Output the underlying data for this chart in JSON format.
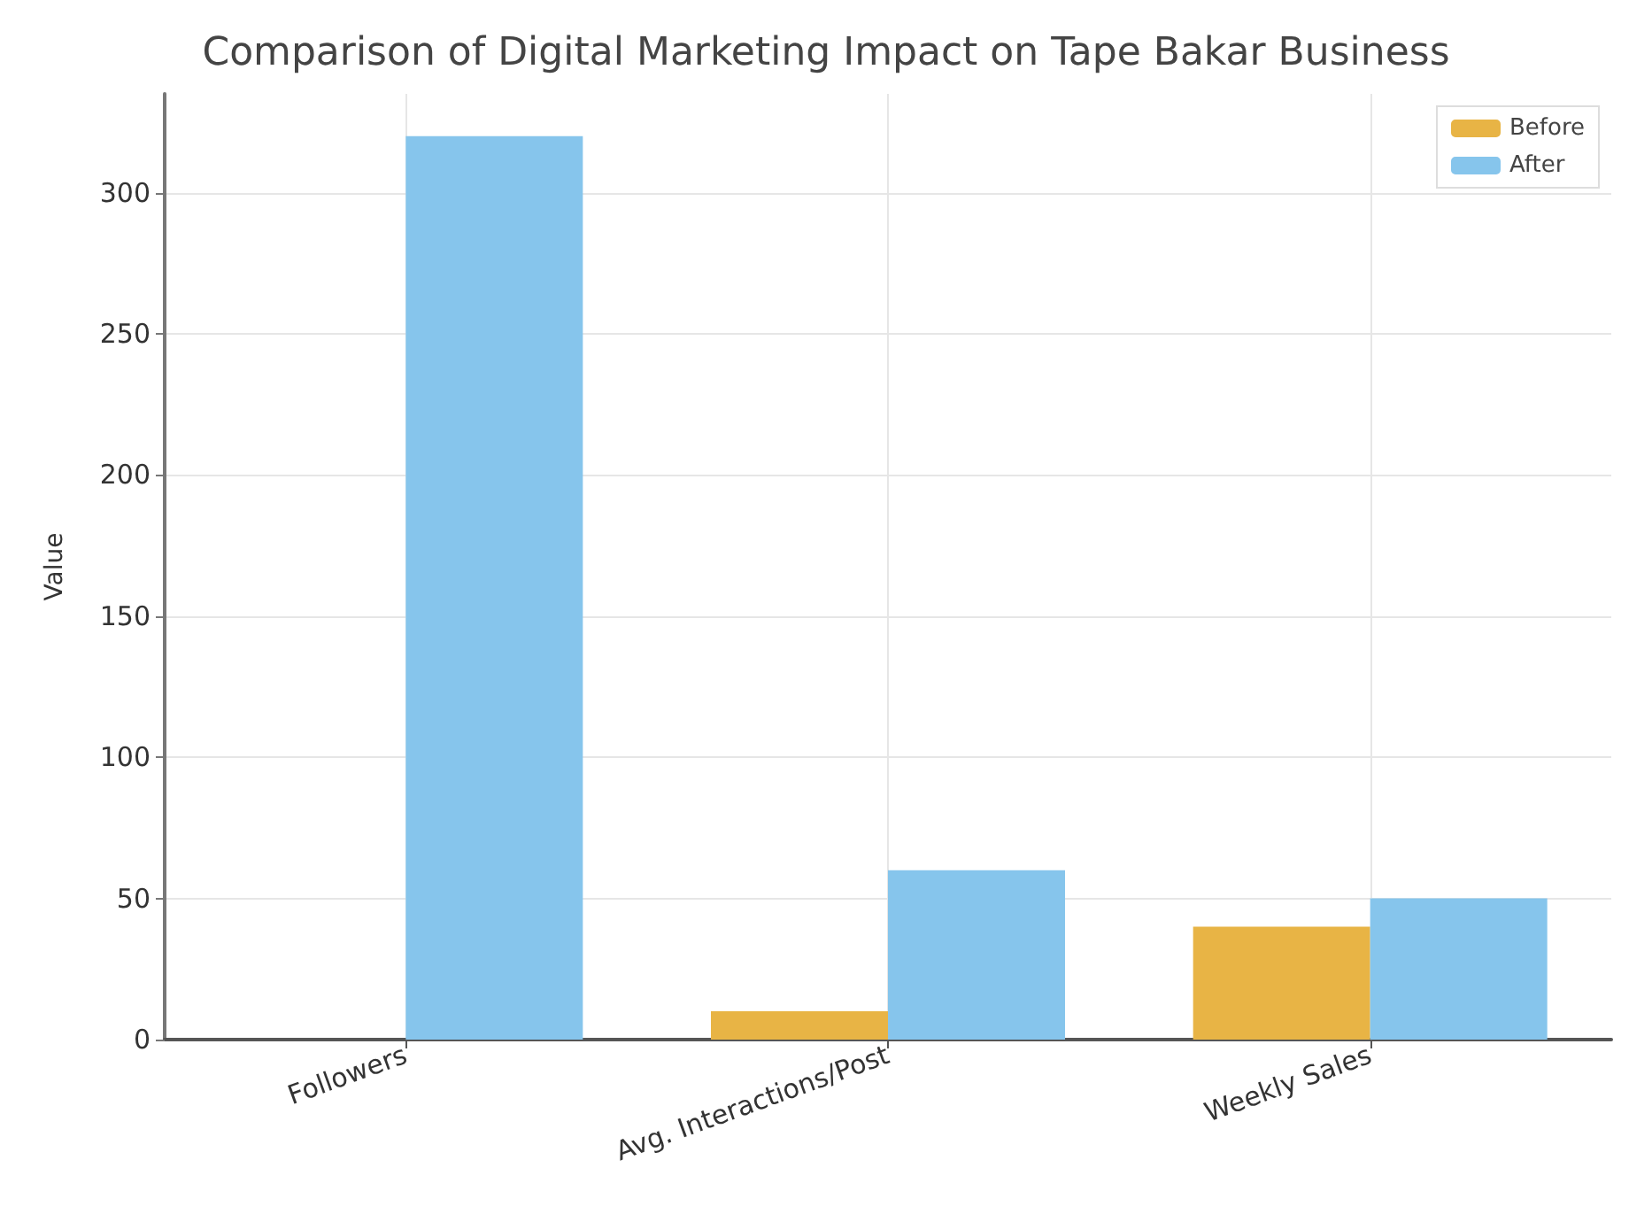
{
  "chart_data": {
    "type": "bar",
    "title": "Comparison of Digital Marketing Impact on Tape Bakar Business",
    "ylabel": "Value",
    "categories": [
      "Followers",
      "Avg. Interactions/Post",
      "Weekly Sales"
    ],
    "series": [
      {
        "name": "Before",
        "color": "#e8b445",
        "values": [
          0,
          10,
          40
        ]
      },
      {
        "name": "After",
        "color": "#86c5ec",
        "values": [
          320,
          60,
          50
        ]
      }
    ],
    "ylim": [
      0,
      335
    ],
    "yticks": [
      0,
      50,
      100,
      150,
      200,
      250,
      300
    ],
    "grid": true,
    "legend": "top right"
  }
}
